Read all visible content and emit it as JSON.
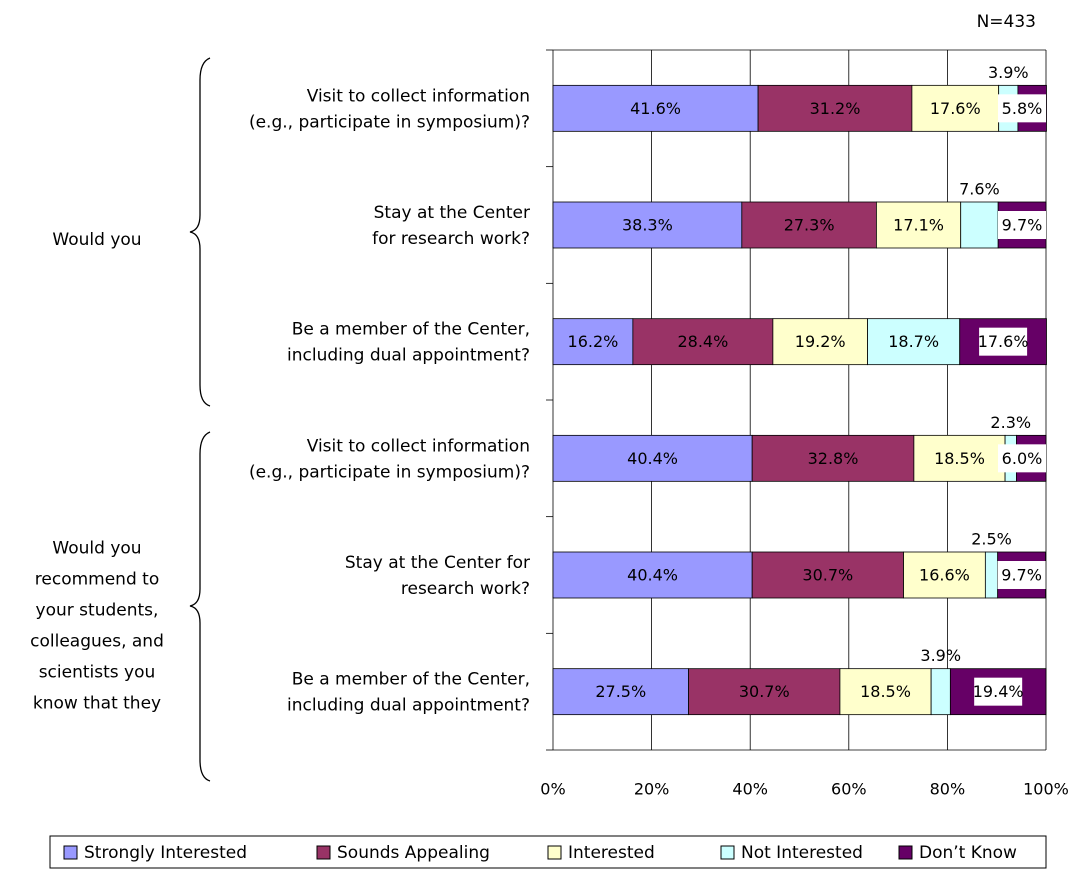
{
  "chart_data": {
    "type": "stacked-bar-horizontal",
    "note": "N=433",
    "groups": [
      [
        "Would  you"
      ],
      [
        "Would you",
        "recommend to",
        "your students,",
        "colleagues, and",
        "scientists you",
        "know that they"
      ]
    ],
    "categories": [
      [
        "Visit to collect information",
        "(e.g., participate in symposium)?"
      ],
      [
        "Stay at the Center",
        "for research work?"
      ],
      [
        "Be a member of the Center,",
        "including dual appointment?"
      ],
      [
        "Visit to collect information",
        "(e.g., participate in symposium)?"
      ],
      [
        "Stay at the Center for",
        "research work?"
      ],
      [
        "Be a member of the Center,",
        "including dual appointment?"
      ]
    ],
    "series": [
      {
        "name": "Strongly Interested",
        "color": "#9999ff",
        "values": [
          41.6,
          38.3,
          16.2,
          40.4,
          40.4,
          27.5
        ],
        "value_labels": [
          "41.6%",
          "38.3%",
          "16.2%",
          "40.4%",
          "40.4%",
          "27.5%"
        ]
      },
      {
        "name": "Sounds Appealing",
        "color": "#993366",
        "values": [
          31.2,
          27.3,
          28.4,
          32.8,
          30.7,
          30.7
        ],
        "value_labels": [
          "31.2%",
          "27.3%",
          "28.4%",
          "32.8%",
          "30.7%",
          "30.7%"
        ]
      },
      {
        "name": "Interested",
        "color": "#ffffcc",
        "values": [
          17.6,
          17.1,
          19.2,
          18.5,
          16.6,
          18.5
        ],
        "value_labels": [
          "17.6%",
          "17.1%",
          "19.2%",
          "18.5%",
          "16.6%",
          "18.5%"
        ]
      },
      {
        "name": "Not Interested",
        "color": "#ccffff",
        "values": [
          3.9,
          7.6,
          18.7,
          2.3,
          2.5,
          3.9
        ],
        "value_labels": [
          "3.9%",
          "7.6%",
          "18.7%",
          "2.3%",
          "2.5%",
          "3.9%"
        ]
      },
      {
        "name": "Don’t Know",
        "color": "#660066",
        "values": [
          5.8,
          9.7,
          17.6,
          6.0,
          9.7,
          19.4
        ],
        "value_labels": [
          "5.8%",
          "9.7%",
          "17.6%",
          "6.0%",
          "9.7%",
          "19.4%"
        ]
      }
    ],
    "xlim": [
      0,
      100
    ],
    "xticks": [
      {
        "value": 0,
        "label": "0%"
      },
      {
        "value": 20,
        "label": "20%"
      },
      {
        "value": 40,
        "label": "40%"
      },
      {
        "value": 60,
        "label": "60%"
      },
      {
        "value": 80,
        "label": "80%"
      },
      {
        "value": 100,
        "label": "100%"
      }
    ],
    "grid": true,
    "legend": "bottom"
  }
}
